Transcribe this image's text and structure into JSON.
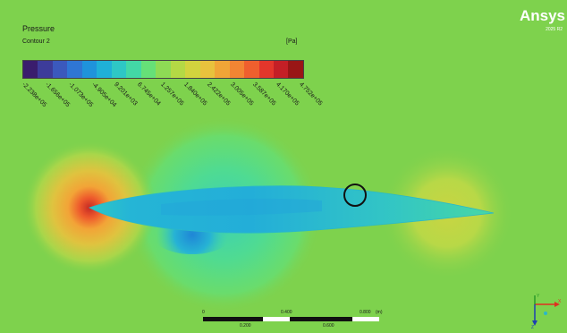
{
  "legend": {
    "title": "Pressure",
    "subtitle": "Contour 2",
    "units": "[Pa]",
    "ticks": [
      "-2.238e+05",
      "-1.656e+05",
      "-1.073e+05",
      "-4.905e+04",
      "9.201e+03",
      "6.745e+04",
      "1.257e+05",
      "1.840e+05",
      "2.422e+05",
      "3.005e+05",
      "3.587e+05",
      "4.170e+05",
      "4.752e+05"
    ],
    "colors": [
      "#3a1d6d",
      "#3d3c9a",
      "#3b59bd",
      "#2f76d4",
      "#1f93db",
      "#1fb0d7",
      "#2ec7c5",
      "#43d8a6",
      "#66e078",
      "#8edb55",
      "#b4d945",
      "#d2d33e",
      "#e8c23d",
      "#f0a537",
      "#f28533",
      "#ef5f2e",
      "#e3362b",
      "#c41f26",
      "#991616"
    ]
  },
  "branding": {
    "logo": "Ansys",
    "version": "2025 R2"
  },
  "scale": {
    "labels": [
      "0",
      "0.400",
      "0.800",
      "(m)",
      "0.200",
      "0.600"
    ]
  },
  "axis": {
    "x": "X",
    "y": "Y",
    "z": "Z"
  }
}
